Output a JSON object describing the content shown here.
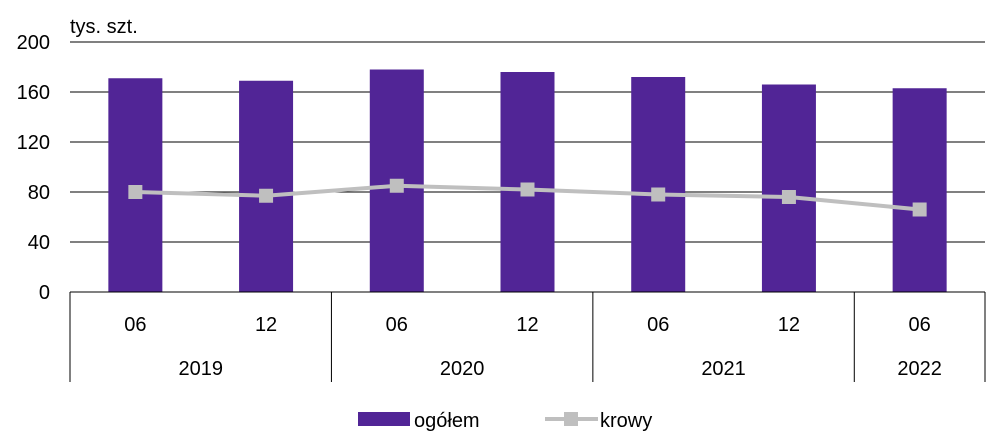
{
  "chart_data": {
    "type": "bar",
    "unit_label": "tys. szt.",
    "categories": [
      "06",
      "12",
      "06",
      "12",
      "06",
      "12",
      "06"
    ],
    "groups": [
      {
        "label": "2019",
        "count": 2
      },
      {
        "label": "2020",
        "count": 2
      },
      {
        "label": "2021",
        "count": 2
      },
      {
        "label": "2022",
        "count": 1
      }
    ],
    "ylim": [
      0,
      200
    ],
    "yticks": [
      0,
      40,
      80,
      120,
      160,
      200
    ],
    "grid": true,
    "legend_position": "bottom",
    "series": [
      {
        "name": "ogółem",
        "type": "bar",
        "color": "#512596",
        "values": [
          171,
          169,
          178,
          176,
          172,
          166,
          163
        ]
      },
      {
        "name": "krowy",
        "type": "line",
        "color": "#bfbfbf",
        "values": [
          80,
          77,
          85,
          82,
          78,
          76,
          66
        ]
      }
    ]
  }
}
